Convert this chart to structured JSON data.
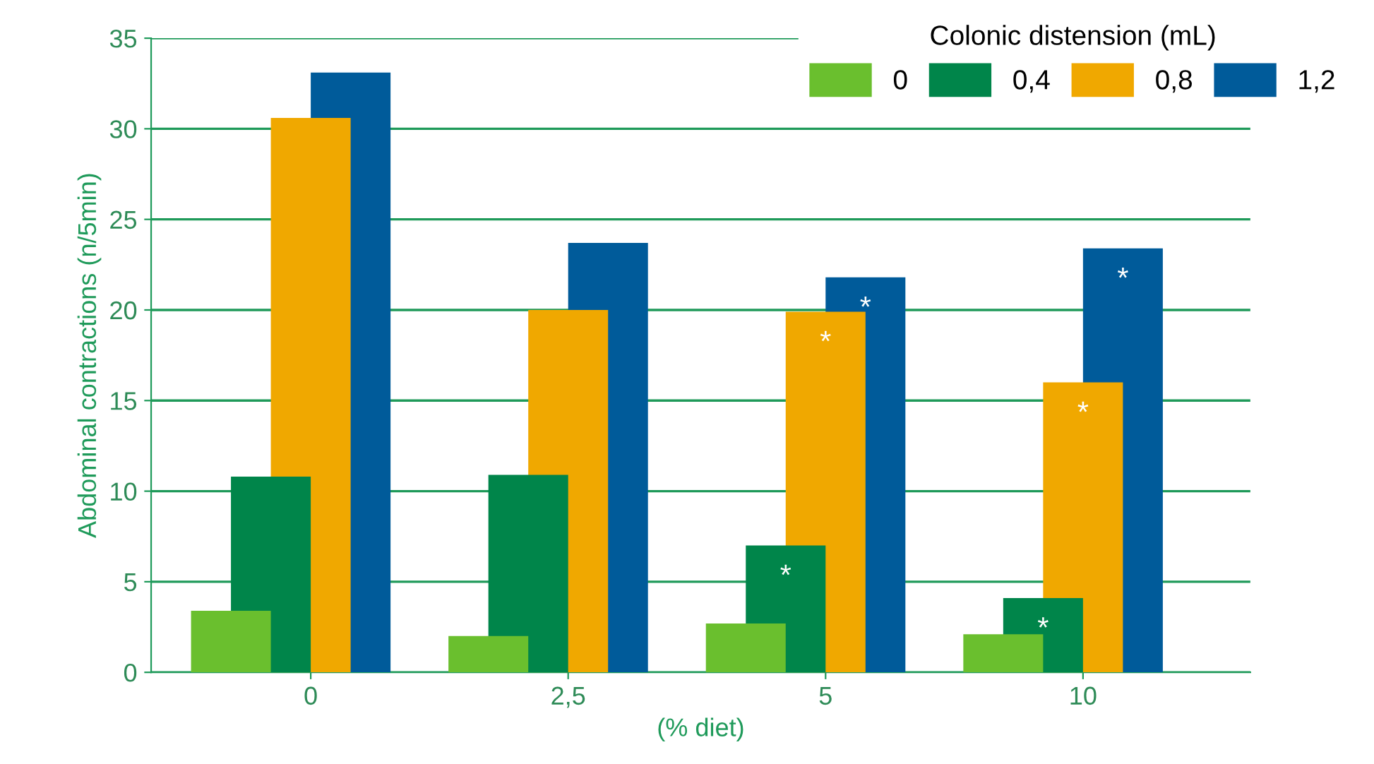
{
  "chart_data": {
    "type": "bar",
    "xlabel": "(% diet)",
    "ylabel": "Abdominal contractions (n/5min)",
    "legend_title": "Colonic distension (mL)",
    "legend": "top right",
    "grid": "y",
    "categories": [
      "0",
      "2,5",
      "5",
      "10"
    ],
    "series": [
      {
        "name": "0",
        "color": "#6abf2e",
        "values": [
          3.4,
          2.0,
          2.7,
          2.1
        ]
      },
      {
        "name": "0,4",
        "color": "#00854a",
        "values": [
          10.8,
          10.9,
          7.0,
          4.1
        ]
      },
      {
        "name": "0,8",
        "color": "#f0a800",
        "values": [
          30.6,
          20.0,
          19.9,
          16.0
        ]
      },
      {
        "name": "1,2",
        "color": "#005b9a",
        "values": [
          33.1,
          23.7,
          21.8,
          23.4
        ]
      }
    ],
    "ylim": [
      0,
      35
    ],
    "yticks": [
      0,
      5,
      10,
      15,
      20,
      25,
      30,
      35
    ],
    "annotations": [
      {
        "text": "*",
        "x": "5",
        "y": 7.0
      },
      {
        "text": "*",
        "x": "5",
        "y": 19.9
      },
      {
        "text": "*",
        "x": "5",
        "y": 21.8
      },
      {
        "text": "*",
        "x": "10",
        "y": 4.1
      },
      {
        "text": "*",
        "x": "10",
        "y": 16.0
      },
      {
        "text": "*",
        "x": "10",
        "y": 23.4
      }
    ]
  }
}
